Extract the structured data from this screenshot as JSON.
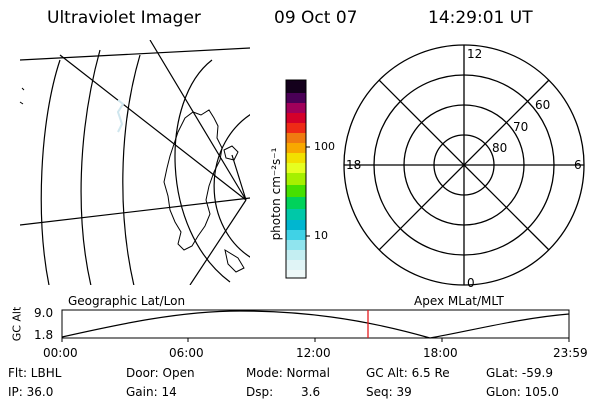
{
  "header": {
    "instrument": "Ultraviolet Imager",
    "date": "09 Oct 07",
    "time": "14:29:01 UT"
  },
  "colorbar": {
    "unit_label": "photon cm⁻²s⁻¹",
    "ticks": [
      "100",
      "10"
    ]
  },
  "polar_plot": {
    "lat_labels": [
      "80",
      "70",
      "60"
    ],
    "mlt_labels": [
      "12",
      "18",
      "6",
      "0"
    ]
  },
  "map_titles": {
    "left": "Geographic Lat/Lon",
    "right": "Apex MLat/MLT"
  },
  "altitude_chart": {
    "ylabel": "GC Alt",
    "yticks": [
      "9.0",
      "1.8"
    ],
    "xticks": [
      "00:00",
      "06:00",
      "12:00",
      "18:00",
      "23:59"
    ],
    "current_time_marker": "14:29"
  },
  "status": {
    "filter": "Flt: LBHL",
    "door": "Door: Open",
    "mode": "Mode: Normal",
    "gc_alt": "GC Alt: 6.5 Re",
    "glat": "GLat: -59.9",
    "ip": "IP: 36.0",
    "gain": "Gain: 14",
    "dsp_label": "Dsp:",
    "dsp_value": "3.6",
    "seq": "Seq: 39",
    "glon": "GLon: 105.0"
  },
  "colors": {
    "marker": "#e41a1c",
    "lines": "#000000"
  }
}
